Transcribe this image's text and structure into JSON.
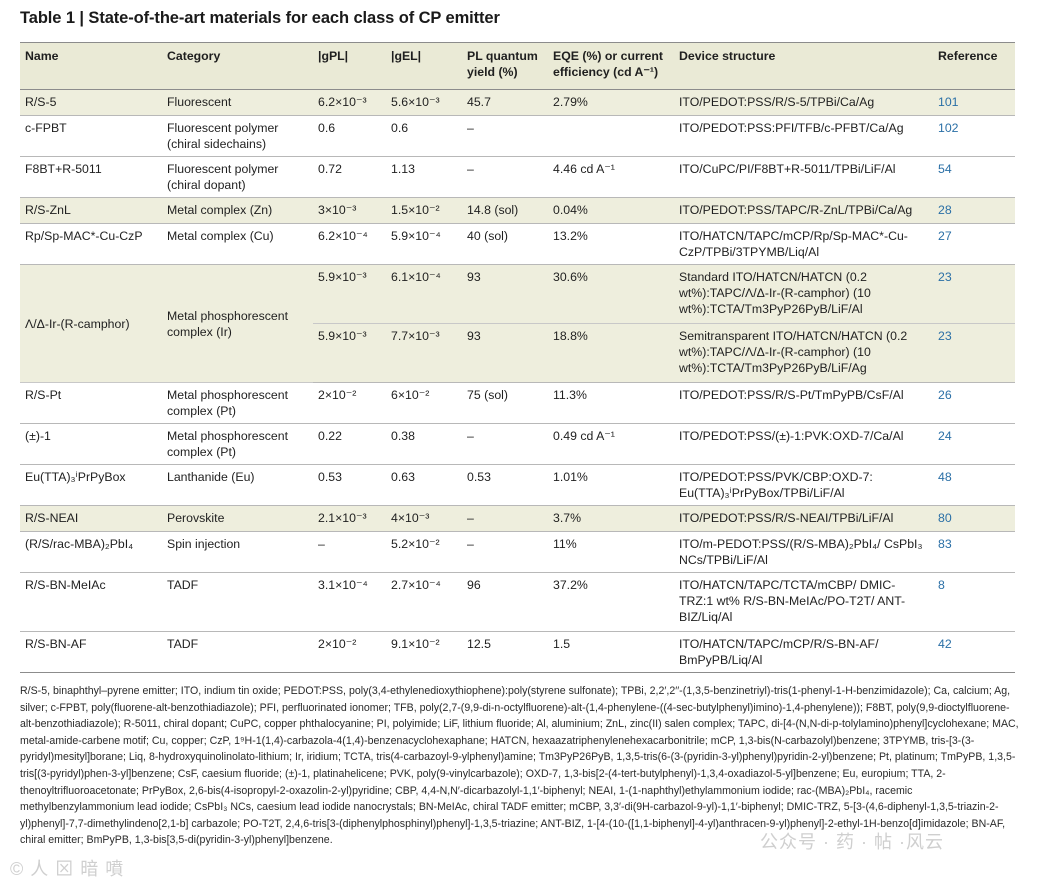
{
  "title": "Table 1 | State-of-the-art materials for each class of CP emitter",
  "headers": {
    "name": "Name",
    "category": "Category",
    "gpl": "|gPL|",
    "gel": "|gEL|",
    "plqy": "PL quantum yield (%)",
    "eqe": "EQE (%) or current efficiency (cd A⁻¹)",
    "device": "Device structure",
    "reference": "Reference"
  },
  "rows": [
    {
      "name": "R/S-5",
      "category": "Fluorescent",
      "gpl": "6.2×10⁻³",
      "gel": "5.6×10⁻³",
      "plqy": "45.7",
      "eqe": "2.79%",
      "device": "ITO/PEDOT:PSS/R/S-5/TPBi/Ca/Ag",
      "reference": "101"
    },
    {
      "name": "c-FPBT",
      "category": "Fluorescent polymer (chiral sidechains)",
      "gpl": "0.6",
      "gel": "0.6",
      "plqy": "–",
      "eqe": "",
      "device": "ITO/PEDOT:PSS:PFI/TFB/c-PFBT/Ca/Ag",
      "reference": "102"
    },
    {
      "name": "F8BT+R-5011",
      "category": "Fluorescent polymer (chiral dopant)",
      "gpl": "0.72",
      "gel": "1.13",
      "plqy": "–",
      "eqe": "4.46 cd A⁻¹",
      "device": "ITO/CuPC/PI/F8BT+R-5011/TPBi/LiF/Al",
      "reference": "54"
    },
    {
      "name": "R/S-ZnL",
      "category": "Metal complex (Zn)",
      "gpl": "3×10⁻³",
      "gel": "1.5×10⁻²",
      "plqy": "14.8 (sol)",
      "eqe": "0.04%",
      "device": "ITO/PEDOT:PSS/TAPC/R-ZnL/TPBi/Ca/Ag",
      "reference": "28"
    },
    {
      "name": "Rp/Sp-MAC*-Cu-CzP",
      "category": "Metal complex (Cu)",
      "gpl": "6.2×10⁻⁴",
      "gel": "5.9×10⁻⁴",
      "plqy": "40 (sol)",
      "eqe": "13.2%",
      "device": "ITO/HATCN/TAPC/mCP/Rp/Sp-MAC*-Cu-CzP/TPBi/3TPYMB/Liq/Al",
      "reference": "27"
    },
    {
      "name": "Λ/Δ-Ir-(R-camphor)",
      "category": "Metal phosphorescent complex (Ir)",
      "gpl": "5.9×10⁻³",
      "gel": "6.1×10⁻⁴",
      "plqy": "93",
      "eqe": "30.6%",
      "device": "Standard ITO/HATCN/HATCN (0.2 wt%):TAPC/Λ/Δ-Ir-(R-camphor) (10 wt%):TCTA/Tm3PyP26PyB/LiF/Al",
      "reference": "23"
    },
    {
      "gpl": "5.9×10⁻³",
      "gel": "7.7×10⁻³",
      "plqy": "93",
      "eqe": "18.8%",
      "device": "Semitransparent ITO/HATCN/HATCN (0.2 wt%):TAPC/Λ/Δ-Ir-(R-camphor) (10 wt%):TCTA/Tm3PyP26PyB/LiF/Ag",
      "reference": "23"
    },
    {
      "name": "R/S-Pt",
      "category": "Metal phosphorescent complex (Pt)",
      "gpl": "2×10⁻²",
      "gel": "6×10⁻²",
      "plqy": "75 (sol)",
      "eqe": "11.3%",
      "device": "ITO/PEDOT:PSS/R/S-Pt/TmPyPB/CsF/Al",
      "reference": "26"
    },
    {
      "name": "(±)-1",
      "category": "Metal phosphorescent complex (Pt)",
      "gpl": "0.22",
      "gel": "0.38",
      "plqy": "–",
      "eqe": "0.49 cd A⁻¹",
      "device": "ITO/PEDOT:PSS/(±)-1:PVK:OXD-7/Ca/Al",
      "reference": "24"
    },
    {
      "name": "Eu(TTA)₃ⁱPrPyBox",
      "category": "Lanthanide (Eu)",
      "gpl": "0.53",
      "gel": "0.63",
      "plqy": "0.53",
      "eqe": "1.01%",
      "device": "ITO/PEDOT:PSS/PVK/CBP:OXD-7: Eu(TTA)₃ⁱPrPyBox/TPBi/LiF/Al",
      "reference": "48"
    },
    {
      "name": "R/S-NEAI",
      "category": "Perovskite",
      "gpl": "2.1×10⁻³",
      "gel": "4×10⁻³",
      "plqy": "–",
      "eqe": "3.7%",
      "device": "ITO/PEDOT:PSS/R/S-NEAI/TPBi/LiF/Al",
      "reference": "80"
    },
    {
      "name": "(R/S/rac-MBA)₂PbI₄",
      "category": "Spin injection",
      "gpl": "–",
      "gel": "5.2×10⁻²",
      "plqy": "–",
      "eqe": "11%",
      "device": "ITO/m-PEDOT:PSS/(R/S-MBA)₂PbI₄/ CsPbI₃ NCs/TPBi/LiF/Al",
      "reference": "83"
    },
    {
      "name": "R/S-BN-MeIAc",
      "category": "TADF",
      "gpl": "3.1×10⁻⁴",
      "gel": "2.7×10⁻⁴",
      "plqy": "96",
      "eqe": "37.2%",
      "device": "ITO/HATCN/TAPC/TCTA/mCBP/ DMIC-TRZ:1 wt% R/S-BN-MeIAc/PO-T2T/ ANT-BIZ/Liq/Al",
      "reference": "8"
    },
    {
      "name": "R/S-BN-AF",
      "category": "TADF",
      "gpl": "2×10⁻²",
      "gel": "9.1×10⁻²",
      "plqy": "12.5",
      "eqe": "1.5",
      "device": "ITO/HATCN/TAPC/mCP/R/S-BN-AF/ BmPyPB/Liq/Al",
      "reference": "42"
    }
  ],
  "footnote": "R/S-5, binaphthyl–pyrene emitter; ITO, indium tin oxide; PEDOT:PSS, poly(3,4-ethylenedioxythiophene):poly(styrene sulfonate); TPBi, 2,2′,2′′-(1,3,5-benzinetriyl)-tris(1-phenyl-1-H-benzimidazole); Ca, calcium; Ag, silver; c-FPBT, poly(fluorene-alt-benzothiadiazole); PFI, perfluorinated ionomer; TFB, poly(2,7-(9,9-di-n-octylfluorene)-alt-(1,4-phenylene-((4-sec-butylphenyl)imino)-1,4-phenylene)); F8BT, poly(9,9-dioctylfluorene-alt-benzothiadiazole); R-5011, chiral dopant; CuPC, copper phthalocyanine; PI, polyimide; LiF, lithium fluoride; Al, aluminium; ZnL, zinc(II) salen complex; TAPC, di-[4-(N,N-di-p-tolylamino)phenyl]cyclohexane; MAC, metal-amide-carbene motif; Cu, copper; CzP, 1⁹H-1(1,4)-carbazola-4(1,4)-benzenacyclohexaphane; HATCN, hexaazatriphenylenehexacarbonitrile; mCP, 1,3-bis(N-carbazolyl)benzene; 3TPYMB, tris-[3-(3-pyridyl)mesityl]borane; Liq, 8-hydroxyquinolinolato-lithium; Ir, iridium; TCTA, tris(4-carbazoyl-9-ylphenyl)amine; Tm3PyP26PyB, 1,3,5-tris(6-(3-(pyridin-3-yl)phenyl)pyridin-2-yl)benzene; Pt, platinum; TmPyPB, 1,3,5-tris[(3-pyridyl)phen-3-yl]benzene; CsF, caesium fluoride; (±)-1, platinahelicene; PVK, poly(9-vinylcarbazole); OXD-7, 1,3-bis[2-(4-tert-butylphenyl)-1,3,4-oxadiazol-5-yl]benzene; Eu, europium; TTA, 2-thenoyltrifluoroacetonate; PrPyBox, 2,6-bis(4-isopropyl-2-oxazolin-2-yl)pyridine; CBP, 4,4-N,N′-dicarbazolyl-1,1′-biphenyl; NEAI, 1-(1-naphthyl)ethylammonium iodide; rac-(MBA)₂PbI₄, racemic methylbenzylammonium lead iodide; CsPbI₃ NCs, caesium lead iodide nanocrystals; BN-MeIAc, chiral TADF emitter; mCBP, 3,3′-di(9H-carbazol-9-yl)-1,1′-biphenyl; DMIC-TRZ, 5-[3-(4,6-diphenyl-1,3,5-triazin-2-yl)phenyl]-7,7-dimethylindeno[2,1-b] carbazole; PO-T2T, 2,4,6-tris[3-(diphenylphosphinyl)phenyl]-1,3,5-triazine; ANT-BIZ, 1-[4-(10-([1,1-biphenyl]-4-yl)anthracen-9-yl)phenyl]-2-ethyl-1H-benzo[d]imidazole; BN-AF, chiral emitter; BmPyPB, 1,3-bis[3,5-di(pyridin-3-yl)phenyl]benzene.",
  "watermarks": {
    "left": "© 人 ⊠ 暗 噴",
    "right": "公众号 · 药 · 帖 ·风云"
  }
}
